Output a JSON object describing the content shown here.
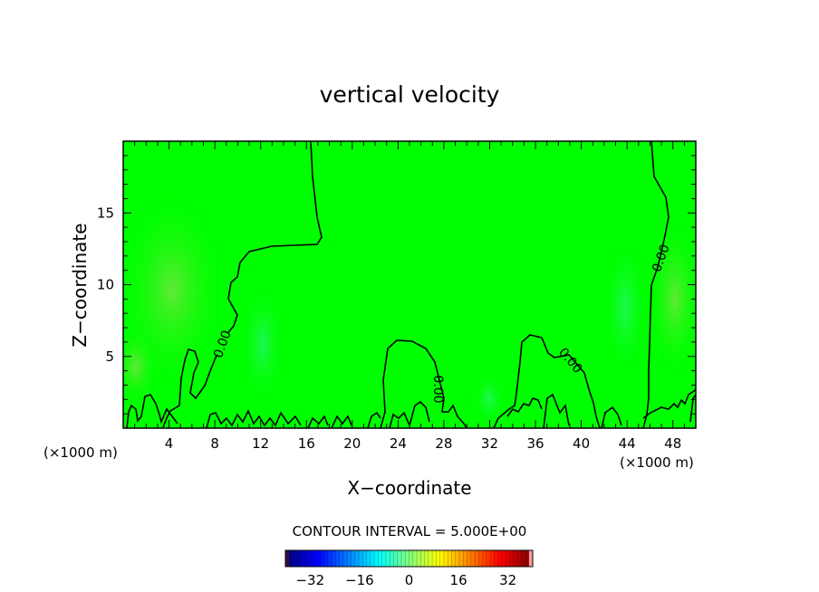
{
  "chart_data": {
    "type": "heatmap",
    "title": "vertical velocity",
    "xlabel": "X−coordinate",
    "ylabel": "Z−coordinate",
    "x_unit_left": "(×1000 m)",
    "x_unit_right": "(×1000 m)",
    "xlim": [
      0,
      50
    ],
    "ylim": [
      0,
      20
    ],
    "x_ticks": [
      4,
      8,
      12,
      16,
      20,
      24,
      28,
      32,
      36,
      40,
      44,
      48
    ],
    "y_ticks": [
      5,
      10,
      15
    ],
    "x_tick_labels": [
      "4",
      "8",
      "12",
      "16",
      "20",
      "24",
      "28",
      "32",
      "36",
      "40",
      "44",
      "48"
    ],
    "y_tick_labels": [
      "5",
      "10",
      "15"
    ],
    "contour_interval_text": "CONTOUR INTERVAL = 5.000E+00",
    "contour_labels": [
      "0.00",
      "0.00",
      "0.00",
      "0.00"
    ],
    "colorbar": {
      "range": [
        -40,
        40
      ],
      "ticks": [
        -32,
        -16,
        0,
        16,
        32
      ],
      "tick_labels": [
        "−32",
        "−16",
        "0",
        "16",
        "32"
      ]
    },
    "colors": {
      "field": "#00ff00",
      "contour": "#000000"
    }
  }
}
